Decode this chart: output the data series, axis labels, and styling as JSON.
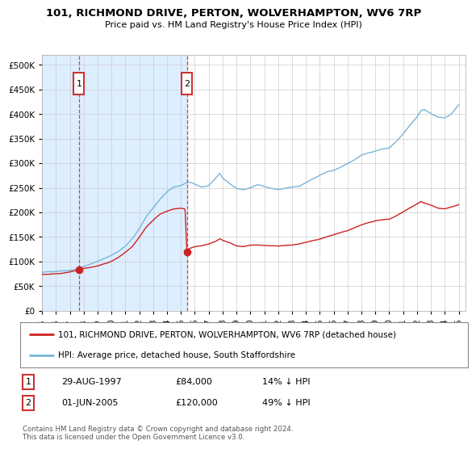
{
  "title": "101, RICHMOND DRIVE, PERTON, WOLVERHAMPTON, WV6 7RP",
  "subtitle": "Price paid vs. HM Land Registry's House Price Index (HPI)",
  "legend_line1": "101, RICHMOND DRIVE, PERTON, WOLVERHAMPTON, WV6 7RP (detached house)",
  "legend_line2": "HPI: Average price, detached house, South Staffordshire",
  "annotation1_date": "29-AUG-1997",
  "annotation1_price": "£84,000",
  "annotation1_hpi": "14% ↓ HPI",
  "annotation2_date": "01-JUN-2005",
  "annotation2_price": "£120,000",
  "annotation2_hpi": "49% ↓ HPI",
  "footer": "Contains HM Land Registry data © Crown copyright and database right 2024.\nThis data is licensed under the Open Government Licence v3.0.",
  "sale1_year": 1997.66,
  "sale1_price": 84000,
  "sale2_year": 2005.42,
  "sale2_price": 120000,
  "hpi_color": "#7ab4d8",
  "property_color": "#cc2222",
  "background_shaded_color": "#ddeeff",
  "dashed_line_color": "#cc3333",
  "grid_color": "#cccccc",
  "ylim": [
    0,
    520000
  ],
  "xlim_start": 1995.0,
  "xlim_end": 2025.5,
  "yticks": [
    0,
    50000,
    100000,
    150000,
    200000,
    250000,
    300000,
    350000,
    400000,
    450000,
    500000
  ],
  "xticks": [
    1995,
    1996,
    1997,
    1998,
    1999,
    2000,
    2001,
    2002,
    2003,
    2004,
    2005,
    2006,
    2007,
    2008,
    2009,
    2010,
    2011,
    2012,
    2013,
    2014,
    2015,
    2016,
    2017,
    2018,
    2019,
    2020,
    2021,
    2022,
    2023,
    2024,
    2025
  ]
}
